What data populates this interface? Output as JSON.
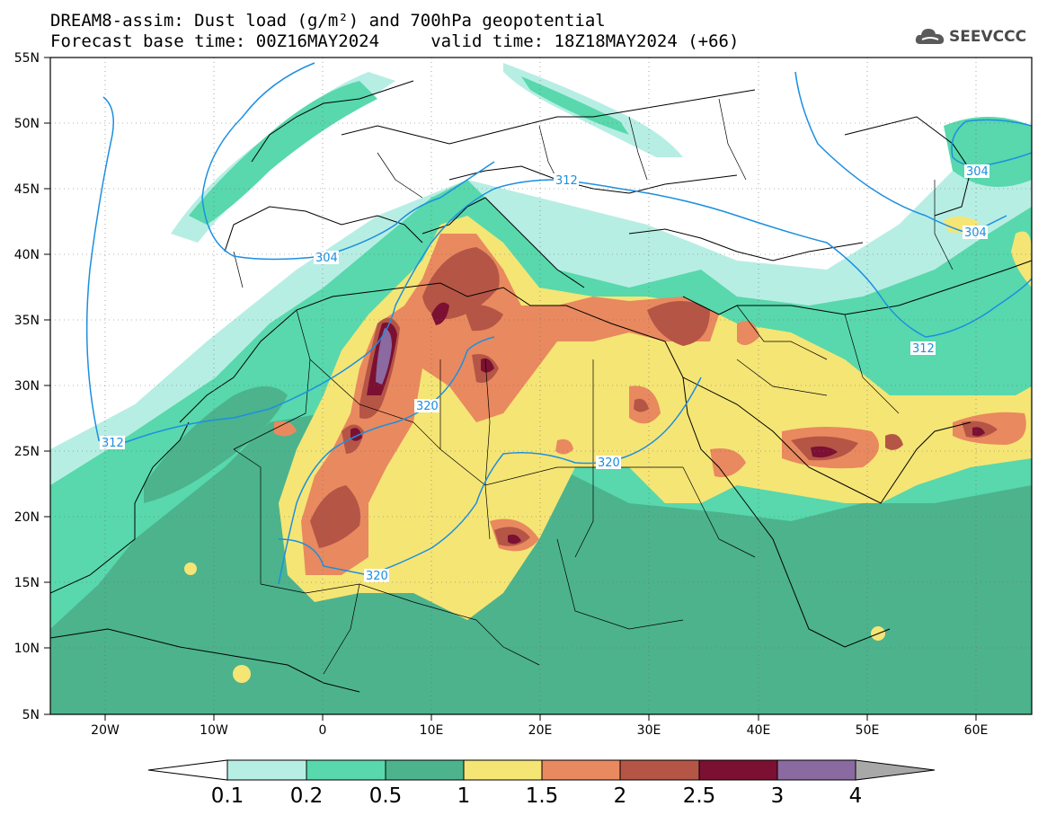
{
  "title": {
    "line1": "DREAM8-assim: Dust load (g/m²) and 700hPa geopotential",
    "line2": "Forecast base time: 00Z16MAY2024     valid time: 18Z18MAY2024 (+66)"
  },
  "logo": {
    "text": "SEEVCCC",
    "icon": "cloud-icon"
  },
  "map": {
    "lon_range": [
      -25,
      65
    ],
    "lat_range": [
      5,
      55
    ],
    "lat_ticks": [
      "55N",
      "50N",
      "45N",
      "40N",
      "35N",
      "30N",
      "25N",
      "20N",
      "15N",
      "10N",
      "5N"
    ],
    "lon_ticks": [
      "20W",
      "10W",
      "0",
      "10E",
      "20E",
      "30E",
      "40E",
      "50E",
      "60E"
    ],
    "contour_labels": [
      "312",
      "304",
      "320",
      "320",
      "320",
      "312",
      "304",
      "312",
      "304"
    ]
  },
  "colorbar": {
    "labels": [
      "0.1",
      "0.2",
      "0.5",
      "1",
      "1.5",
      "2",
      "2.5",
      "3",
      "4"
    ],
    "colors": [
      "#ffffff",
      "#b7eee4",
      "#58d8ac",
      "#4cb38d",
      "#f5e575",
      "#e9895f",
      "#b55546",
      "#7c1033",
      "#8a6aa0",
      "#a8a8a8"
    ]
  },
  "colors": {
    "c01": "#b7eee4",
    "c02": "#58d8ac",
    "c05": "#4cb38d",
    "c1": "#f5e575",
    "c15": "#e9895f",
    "c2": "#b55546",
    "c25": "#7c1033",
    "c3": "#8a6aa0",
    "contour": "#1c8fe0"
  }
}
